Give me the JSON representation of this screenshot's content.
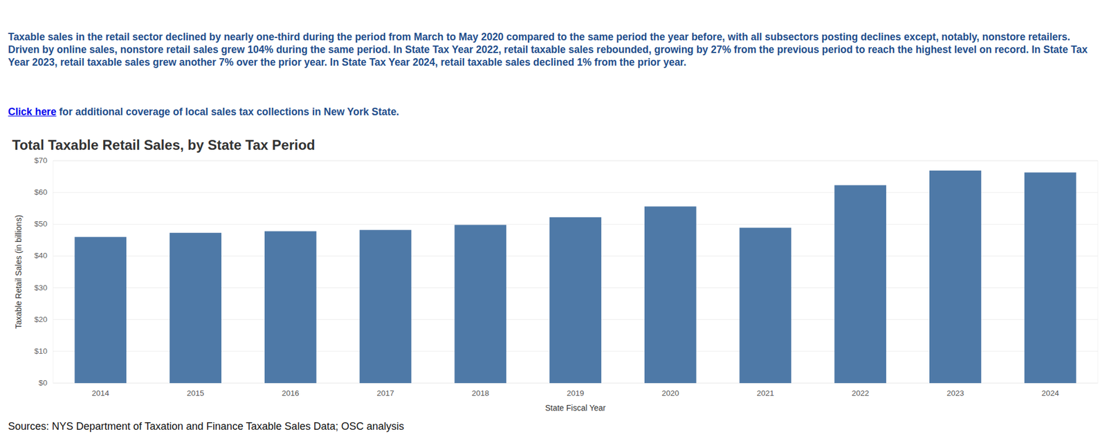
{
  "intro": "Taxable sales in the retail sector declined by nearly one-third during the period from March to May 2020 compared to the same period the year before, with all subsectors posting declines except, notably, nonstore retailers. Driven by online sales, nonstore retail sales grew 104% during the same period. In State Tax Year 2022, retail taxable sales rebounded, growing by 27% from the previous period to reach the highest level on record. In State Tax Year 2023, retail taxable sales grew another 7% over the prior year. In State Tax Year 2024, retail taxable sales declined 1% from the prior year.",
  "link": {
    "text": "Click here",
    "suffix": "for additional coverage of local sales tax collections in New York State."
  },
  "source": "Sources: NYS Department of Taxation and Finance Taxable Sales Data; OSC analysis",
  "chart_data": {
    "type": "bar",
    "title": "Total Taxable Retail Sales, by State Tax Period",
    "x_label": "State Fiscal Year",
    "y_label": "Taxable Retail Sales (in billions)",
    "categories": [
      "2014",
      "2015",
      "2016",
      "2017",
      "2018",
      "2019",
      "2020",
      "2021",
      "2022",
      "2023",
      "2024"
    ],
    "values": [
      46.0,
      47.3,
      47.8,
      48.2,
      49.8,
      52.2,
      55.6,
      48.9,
      62.3,
      66.9,
      66.3
    ],
    "color": "#4e79a7",
    "ylim": [
      0,
      70
    ],
    "yticks": [
      {
        "value": 0,
        "label": "$0"
      },
      {
        "value": 10,
        "label": "$10"
      },
      {
        "value": 20,
        "label": "$20"
      },
      {
        "value": 30,
        "label": "$30"
      },
      {
        "value": 40,
        "label": "$40"
      },
      {
        "value": 50,
        "label": "$50"
      },
      {
        "value": 60,
        "label": "$60"
      },
      {
        "value": 70,
        "label": "$70"
      }
    ],
    "grid": true
  }
}
